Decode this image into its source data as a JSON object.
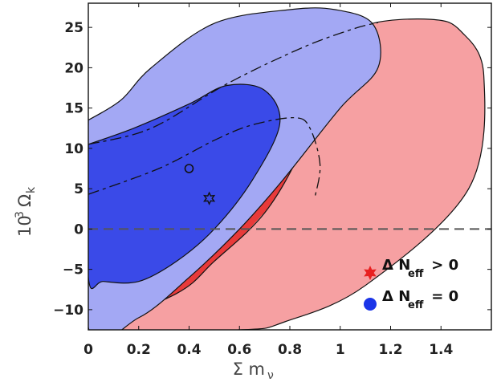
{
  "chart_data": {
    "type": "contour",
    "xlabel": "Σ m",
    "xlabel_sub": "ν",
    "ylabel": "10",
    "ylabel_sup": "3",
    "ylabel_omega": "Ω",
    "ylabel_sub": "k",
    "xlim": [
      0,
      1.6
    ],
    "ylim": [
      -12.5,
      28
    ],
    "xticks": [
      "0",
      "0.2",
      "0.4",
      "0.6",
      "0.8",
      "1",
      "1.2",
      "1.4"
    ],
    "xtick_values": [
      0,
      0.2,
      0.4,
      0.6,
      0.8,
      1.0,
      1.2,
      1.4
    ],
    "yticks": [
      "−10",
      "−5",
      "0",
      "5",
      "10",
      "15",
      "20",
      "25"
    ],
    "ytick_values": [
      -10,
      -5,
      0,
      5,
      10,
      15,
      20,
      25
    ],
    "reference_line_y": 0,
    "colors": {
      "red_outer": "#f6a0a2",
      "red_edge": "#e83a3a",
      "blue_outer": "#a3a8f4",
      "blue_inner": "#3a4ae8",
      "outline": "#111111",
      "ref_line": "#555555"
    },
    "series": [
      {
        "name": "Δ N_eff > 0",
        "region": "95%",
        "color": "#f6a0a2",
        "contour": [
          [
            0,
            -12.5
          ],
          [
            0.35,
            -8
          ],
          [
            0.5,
            -4
          ],
          [
            0.7,
            2
          ],
          [
            0.85,
            10
          ],
          [
            1.0,
            21
          ],
          [
            1.1,
            25.2
          ],
          [
            1.36,
            26
          ],
          [
            1.48,
            24.5
          ],
          [
            1.57,
            19
          ],
          [
            1.51,
            5
          ],
          [
            1.1,
            -7
          ],
          [
            0.78,
            -11.5
          ],
          [
            0.6,
            -12.5
          ],
          [
            0,
            -12.5
          ]
        ]
      },
      {
        "name": "Δ N_eff = 0",
        "region": "95%",
        "color": "#a3a8f4",
        "contour": [
          [
            0,
            13.5
          ],
          [
            0.13,
            16
          ],
          [
            0.25,
            20
          ],
          [
            0.5,
            25.5
          ],
          [
            0.8,
            27.2
          ],
          [
            0.98,
            27.2
          ],
          [
            1.13,
            25.4
          ],
          [
            1.15,
            20
          ],
          [
            1.0,
            15
          ],
          [
            0.77,
            6
          ],
          [
            0.6,
            0
          ],
          [
            0.4,
            -6
          ],
          [
            0.2,
            -11
          ],
          [
            0.0,
            -12.2
          ],
          [
            0,
            13.5
          ]
        ]
      },
      {
        "name": "Δ N_eff = 0",
        "region": "68%",
        "color": "#3a4ae8",
        "contour": [
          [
            0,
            10.5
          ],
          [
            0.18,
            12.5
          ],
          [
            0.4,
            15.5
          ],
          [
            0.55,
            17.8
          ],
          [
            0.7,
            17.2
          ],
          [
            0.76,
            13
          ],
          [
            0.65,
            6
          ],
          [
            0.5,
            0
          ],
          [
            0.35,
            -4
          ],
          [
            0.2,
            -6.5
          ],
          [
            0.06,
            -6.5
          ],
          [
            0,
            -6
          ],
          [
            0,
            10.5
          ]
        ]
      },
      {
        "name": "Δ N_eff > 0",
        "region": "68%",
        "style": "dashed",
        "contour": [
          [
            0,
            10.5
          ],
          [
            0.25,
            12.5
          ],
          [
            0.55,
            18
          ],
          [
            0.85,
            22.5
          ],
          [
            1.05,
            24.8
          ],
          [
            1.15,
            25.6
          ]
        ]
      },
      {
        "name": "Δ N_eff > 0",
        "region": "68%",
        "style": "dashed",
        "contour": [
          [
            0,
            4.3
          ],
          [
            0.28,
            7.5
          ],
          [
            0.5,
            11
          ],
          [
            0.65,
            12.9
          ],
          [
            0.82,
            13.8
          ],
          [
            0.88,
            12.5
          ],
          [
            0.92,
            8
          ],
          [
            0.9,
            4
          ]
        ]
      }
    ],
    "points": [
      {
        "name": "best fit Δ N_eff = 0",
        "marker": "circle",
        "x": 0.4,
        "y": 7.5
      },
      {
        "name": "best fit Δ N_eff > 0",
        "marker": "star",
        "x": 0.48,
        "y": 3.8
      }
    ],
    "legend": {
      "placement": "bottom-right",
      "entries": [
        {
          "marker": "star",
          "color": "#e82020",
          "label": "Δ N",
          "sub": "eff",
          "suffix": " > 0"
        },
        {
          "marker": "circle",
          "color": "#1b35e8",
          "label": "Δ N",
          "sub": "eff",
          "suffix": " = 0"
        }
      ]
    }
  }
}
